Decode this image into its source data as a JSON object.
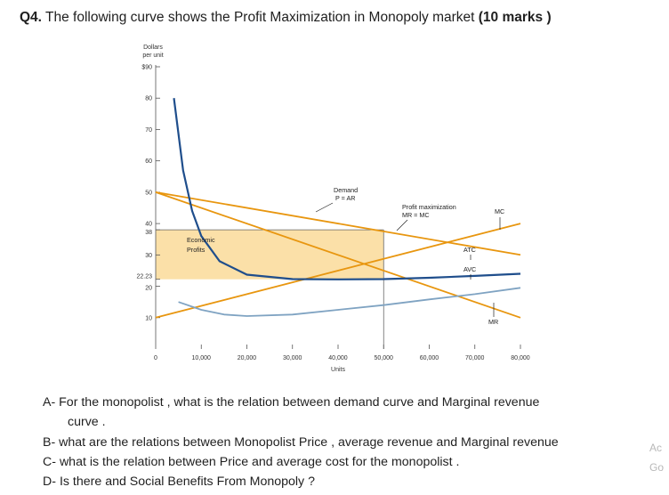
{
  "question": {
    "number": "Q4.",
    "text": "The following curve shows the Profit Maximization in Monopoly market",
    "marks": "(10 marks )"
  },
  "chart_data": {
    "type": "line",
    "ylabel": "Dollars per unit",
    "xlabel": "Units",
    "xlim": [
      0,
      80000
    ],
    "ylim": [
      0,
      90
    ],
    "x_ticks": [
      "0",
      "10,000",
      "20,000",
      "30,000",
      "40,000",
      "50,000",
      "60,000",
      "70,000",
      "80,000"
    ],
    "y_ticks": [
      "$90",
      "80",
      "70",
      "60",
      "50",
      "40",
      "38",
      "30",
      "22.23",
      "20",
      "10"
    ],
    "series": [
      {
        "name": "Demand P = AR",
        "color": "#e8960f",
        "x": [
          0,
          80000
        ],
        "y": [
          50,
          30
        ]
      },
      {
        "name": "MR = MC",
        "color": "#e8960f",
        "x": [
          0,
          80000
        ],
        "y": [
          50,
          10
        ]
      },
      {
        "name": "MC",
        "color": "#e8960f",
        "x": [
          0,
          80000
        ],
        "y": [
          10,
          40
        ]
      },
      {
        "name": "ATC",
        "color": "#1f4e8c",
        "x": [
          4000,
          6000,
          8000,
          10000,
          14000,
          20000,
          30000,
          40000,
          50000,
          60000,
          70000,
          80000
        ],
        "y": [
          80,
          57,
          44,
          36,
          28,
          23.7,
          22.3,
          22.2,
          22.3,
          22.7,
          23.3,
          24
        ]
      },
      {
        "name": "AVC",
        "color": "#7fa3c2",
        "x": [
          5000,
          10000,
          15000,
          20000,
          30000,
          40000,
          50000,
          60000,
          70000,
          80000
        ],
        "y": [
          15,
          12.5,
          11,
          10.5,
          11,
          12.5,
          14,
          15.8,
          17.5,
          19.5
        ]
      }
    ],
    "profit_area": {
      "x": [
        0,
        50000
      ],
      "y": [
        22.23,
        38
      ],
      "label": "Economic Profits"
    },
    "annotations": {
      "demand": "Demand\nP = AR",
      "profit_max": "Profit maximization\nMR = MC",
      "mc": "MC",
      "atc": "ATC",
      "avc": "AVC",
      "mr": "MR"
    },
    "grid": false,
    "legend": "none"
  },
  "questions": [
    {
      "label": "A-",
      "text": "For the monopolist , what is the relation between demand curve and Marginal revenue",
      "cont": "curve ."
    },
    {
      "label": "B-",
      "text": "what are the relations between Monopolist Price , average revenue and Marginal revenue"
    },
    {
      "label": "C-",
      "text": "what is the relation between Price and average cost for the monopolist ."
    },
    {
      "label": "D-",
      "text": "Is there and Social Benefits From Monopoly ?"
    }
  ],
  "sidebar": {
    "line1": "Ac",
    "line2": "Go"
  }
}
